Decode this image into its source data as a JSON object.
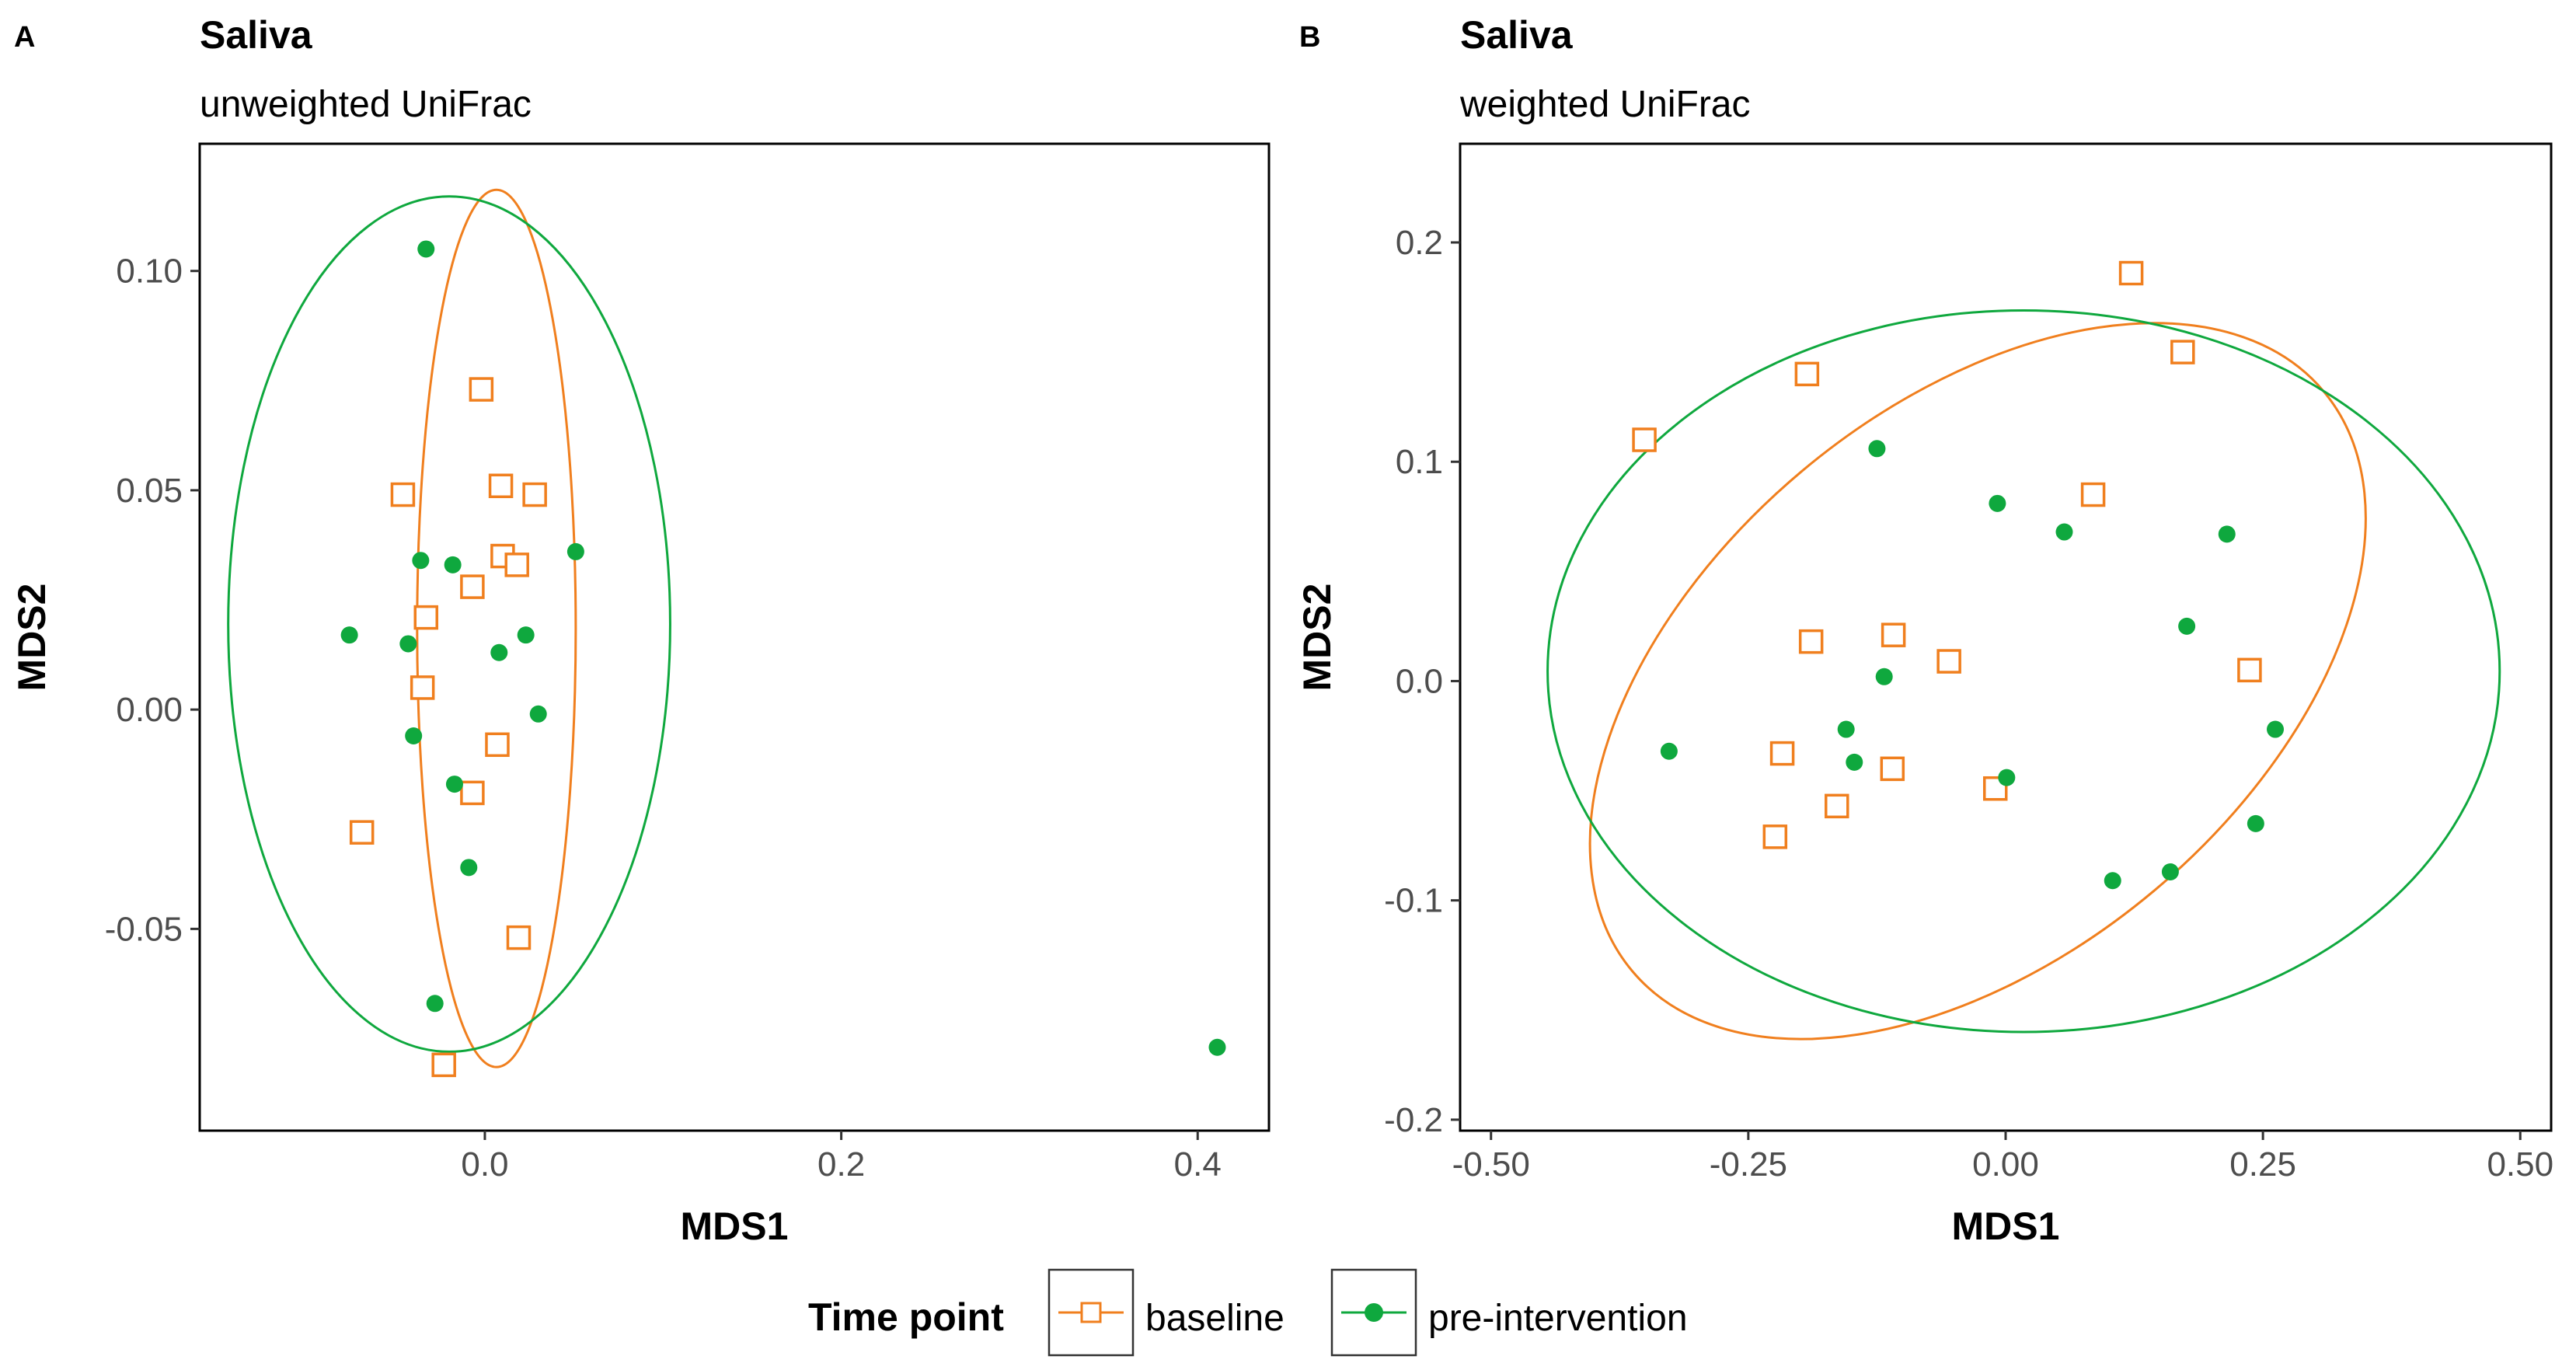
{
  "legend": {
    "title": "Time point",
    "items": [
      {
        "label": "baseline",
        "color": "#F07F1E",
        "shape": "open-square"
      },
      {
        "label": "pre-intervention",
        "color": "#0FA83E",
        "shape": "filled-circle"
      }
    ]
  },
  "chart_data": [
    {
      "type": "scatter",
      "panel_label": "A",
      "title": "Saliva",
      "subtitle": "unweighted UniFrac",
      "xlabel": "MDS1",
      "ylabel": "MDS2",
      "xlim": [
        -0.16,
        0.44
      ],
      "ylim": [
        -0.096,
        0.129
      ],
      "xticks": [
        0.0,
        0.2,
        0.4
      ],
      "xtick_labels": [
        "0.0",
        "0.2",
        "0.4"
      ],
      "yticks": [
        -0.05,
        0.0,
        0.05,
        0.1
      ],
      "ytick_labels": [
        "-0.05",
        "0.00",
        "0.05",
        "0.10"
      ],
      "series": [
        {
          "name": "baseline",
          "points": [
            [
              -0.002,
              0.073
            ],
            [
              -0.046,
              0.049
            ],
            [
              0.009,
              0.051
            ],
            [
              0.028,
              0.049
            ],
            [
              0.01,
              0.035
            ],
            [
              0.018,
              0.033
            ],
            [
              -0.007,
              0.028
            ],
            [
              -0.033,
              0.021
            ],
            [
              -0.035,
              0.005
            ],
            [
              0.007,
              -0.008
            ],
            [
              -0.007,
              -0.019
            ],
            [
              -0.069,
              -0.028
            ],
            [
              0.019,
              -0.052
            ],
            [
              -0.023,
              -0.081
            ]
          ]
        },
        {
          "name": "pre-intervention",
          "points": [
            [
              -0.033,
              0.105
            ],
            [
              -0.036,
              0.034
            ],
            [
              -0.018,
              0.033
            ],
            [
              0.051,
              0.036
            ],
            [
              -0.076,
              0.017
            ],
            [
              -0.043,
              0.015
            ],
            [
              0.023,
              0.017
            ],
            [
              0.008,
              0.013
            ],
            [
              -0.04,
              -0.006
            ],
            [
              0.03,
              -0.001
            ],
            [
              -0.017,
              -0.017
            ],
            [
              -0.009,
              -0.036
            ],
            [
              -0.028,
              -0.067
            ],
            [
              0.411,
              -0.077
            ]
          ]
        }
      ],
      "ellipses": [
        {
          "series": "baseline",
          "center": [
            0.0065,
            0.0185
          ],
          "semi_axes": [
            0.0445,
            0.1
          ],
          "rotation_deg": 0
        },
        {
          "series": "pre-intervention",
          "center": [
            -0.02,
            0.0195
          ],
          "semi_axes": [
            0.124,
            0.0975
          ],
          "rotation_deg": 0
        }
      ]
    },
    {
      "type": "scatter",
      "panel_label": "B",
      "title": "Saliva",
      "subtitle": "weighted UniFrac",
      "xlabel": "MDS1",
      "ylabel": "MDS2",
      "xlim": [
        -0.53,
        0.53
      ],
      "ylim": [
        -0.205,
        0.245
      ],
      "xticks": [
        -0.5,
        -0.25,
        0.0,
        0.25,
        0.5
      ],
      "xtick_labels": [
        "-0.50",
        "-0.25",
        "0.00",
        "0.25",
        "0.50"
      ],
      "yticks": [
        -0.2,
        -0.1,
        0.0,
        0.1,
        0.2
      ],
      "ytick_labels": [
        "-0.2",
        "-0.1",
        "0.0",
        "0.1",
        "0.2"
      ],
      "series": [
        {
          "name": "baseline",
          "points": [
            [
              0.122,
              0.186
            ],
            [
              0.172,
              0.15
            ],
            [
              -0.193,
              0.14
            ],
            [
              -0.351,
              0.11
            ],
            [
              0.085,
              0.085
            ],
            [
              -0.189,
              0.018
            ],
            [
              -0.109,
              0.021
            ],
            [
              -0.055,
              0.009
            ],
            [
              0.237,
              0.005
            ],
            [
              -0.217,
              -0.033
            ],
            [
              -0.11,
              -0.04
            ],
            [
              -0.164,
              -0.057
            ],
            [
              -0.01,
              -0.049
            ],
            [
              -0.224,
              -0.071
            ]
          ]
        },
        {
          "name": "pre-intervention",
          "points": [
            [
              -0.125,
              0.106
            ],
            [
              -0.008,
              0.081
            ],
            [
              0.057,
              0.068
            ],
            [
              0.215,
              0.067
            ],
            [
              0.176,
              0.025
            ],
            [
              -0.118,
              0.002
            ],
            [
              -0.155,
              -0.022
            ],
            [
              -0.147,
              -0.037
            ],
            [
              -0.327,
              -0.032
            ],
            [
              0.001,
              -0.044
            ],
            [
              0.262,
              -0.022
            ],
            [
              0.243,
              -0.065
            ],
            [
              0.16,
              -0.087
            ],
            [
              0.104,
              -0.091
            ]
          ]
        }
      ],
      "ellipses": [
        {
          "series": "baseline",
          "center": [
            -0.027,
            0.0
          ],
          "semi_axes": [
            0.28,
            0.17
          ],
          "rotation_deg": 40
        },
        {
          "series": "pre-intervention",
          "center": [
            0.0175,
            0.0045
          ],
          "semi_axes": [
            0.4625,
            0.1645
          ],
          "rotation_deg": 0
        }
      ]
    }
  ]
}
